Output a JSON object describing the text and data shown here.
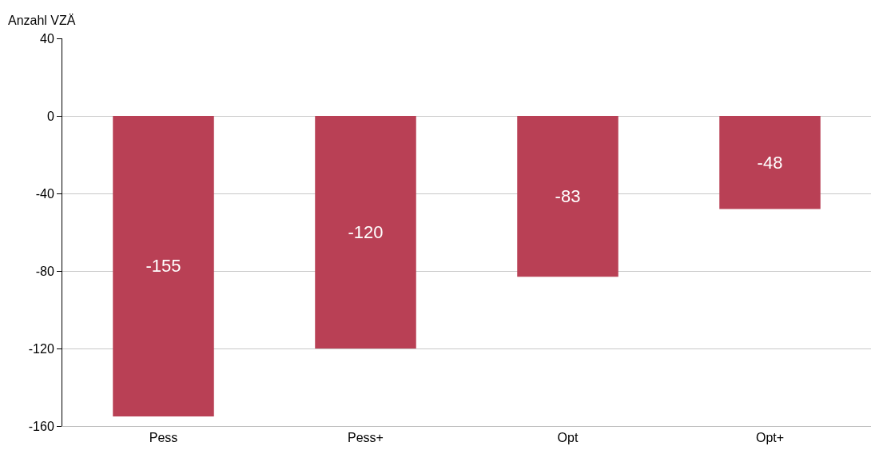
{
  "chart_data": {
    "type": "bar",
    "ylabel": "Anzahl VZÄ",
    "categories": [
      "Pess",
      "Pess+",
      "Opt",
      "Opt+"
    ],
    "values": [
      -155,
      -120,
      -83,
      -48
    ],
    "color": "#b94055",
    "ylim": [
      -160,
      40
    ],
    "yticks": [
      -160,
      -120,
      -80,
      -40,
      0,
      40
    ],
    "grid": "y",
    "data_labels": true
  }
}
